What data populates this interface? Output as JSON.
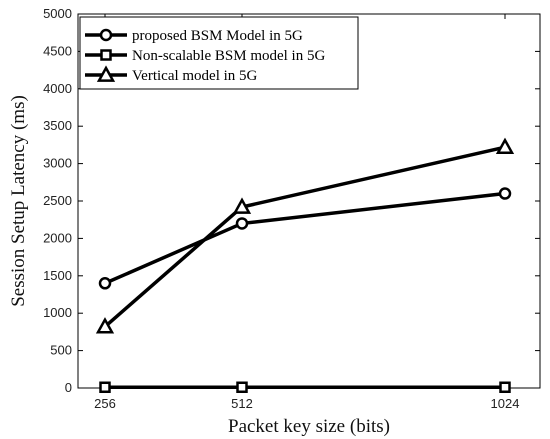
{
  "chart_data": {
    "type": "line",
    "title": "",
    "xlabel": "Packet key size (bits)",
    "ylabel": "Session Setup Latency (ms)",
    "x": [
      256,
      512,
      1024
    ],
    "x_tick_labels": [
      "256",
      "512",
      "1024"
    ],
    "ylim": [
      0,
      5000
    ],
    "y_ticks": [
      0,
      500,
      1000,
      1500,
      2000,
      2500,
      3000,
      3500,
      4000,
      4500,
      5000
    ],
    "grid": false,
    "legend_position": "top-left",
    "series": [
      {
        "name": "proposed BSM Model in 5G",
        "marker": "circle",
        "color": "#000000",
        "values": [
          1400,
          2200,
          2600
        ]
      },
      {
        "name": "Non-scalable BSM model in 5G",
        "marker": "square",
        "color": "#000000",
        "values": [
          10,
          10,
          10
        ]
      },
      {
        "name": "Vertical model in 5G",
        "marker": "triangle",
        "color": "#000000",
        "values": [
          820,
          2420,
          3220
        ]
      }
    ]
  }
}
